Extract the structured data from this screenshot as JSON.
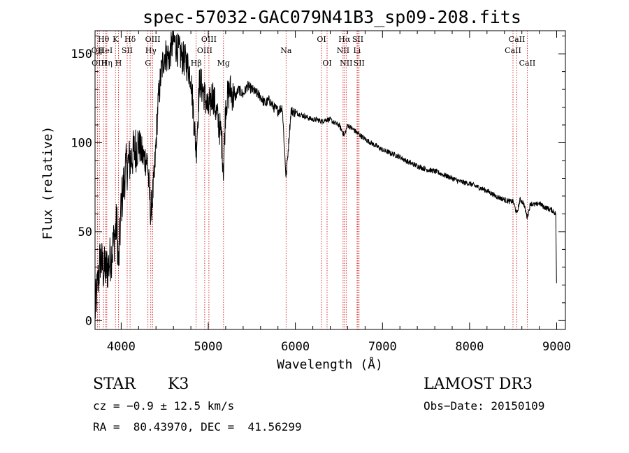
{
  "chart_data": {
    "type": "line",
    "title": "spec-57032-GAC079N41B3_sp09-208.fits",
    "xlabel": "Wavelength (Å)",
    "ylabel": "Flux (relative)",
    "xlim": [
      3700,
      9100
    ],
    "ylim": [
      -5,
      163
    ],
    "xticks": [
      4000,
      5000,
      6000,
      7000,
      8000,
      9000
    ],
    "yticks": [
      0,
      50,
      100,
      150
    ],
    "xtick_labels": [
      "4000",
      "5000",
      "6000",
      "7000",
      "8000",
      "9000"
    ],
    "ytick_labels": [
      "0",
      "50",
      "100",
      "150"
    ],
    "line_color": "#000000",
    "marker_color": "#cc0000",
    "spectrum_anchors": {
      "x": [
        3700,
        3720,
        3760,
        3800,
        3850,
        3900,
        3950,
        3970,
        4000,
        4050,
        4100,
        4150,
        4200,
        4250,
        4300,
        4340,
        4380,
        4420,
        4460,
        4500,
        4550,
        4600,
        4650,
        4700,
        4750,
        4800,
        4861,
        4900,
        4950,
        5000,
        5050,
        5100,
        5150,
        5175,
        5200,
        5250,
        5300,
        5350,
        5400,
        5450,
        5500,
        5550,
        5600,
        5650,
        5700,
        5750,
        5800,
        5850,
        5893,
        5950,
        6000,
        6050,
        6100,
        6150,
        6200,
        6250,
        6300,
        6350,
        6400,
        6450,
        6500,
        6563,
        6600,
        6650,
        6700,
        6750,
        6800,
        6900,
        7000,
        7100,
        7200,
        7300,
        7400,
        7500,
        7600,
        7700,
        7800,
        7900,
        8000,
        8100,
        8200,
        8300,
        8400,
        8450,
        8500,
        8542,
        8580,
        8620,
        8662,
        8700,
        8750,
        8800,
        8850,
        8900,
        8950,
        8990,
        9000
      ],
      "y": [
        5,
        15,
        35,
        28,
        30,
        40,
        55,
        30,
        65,
        85,
        90,
        95,
        100,
        92,
        90,
        60,
        80,
        120,
        140,
        150,
        148,
        158,
        152,
        148,
        145,
        138,
        95,
        135,
        128,
        118,
        128,
        115,
        104,
        85,
        122,
        130,
        125,
        130,
        127,
        132,
        130,
        128,
        126,
        122,
        124,
        120,
        118,
        120,
        80,
        118,
        117,
        116,
        115,
        114,
        113,
        113,
        112,
        113,
        113,
        111,
        110,
        104,
        110,
        108,
        106,
        104,
        102,
        99,
        96,
        94,
        92,
        89,
        87,
        85,
        84,
        82,
        80,
        78,
        77,
        75,
        73,
        70,
        68,
        67,
        67,
        60,
        68,
        66,
        58,
        66,
        65,
        66,
        64,
        63,
        62,
        60,
        10
      ]
    },
    "line_markers": [
      {
        "label": "Hθ",
        "wave": 3797,
        "row": 1
      },
      {
        "label": "OII",
        "wave": 3727,
        "row": 2
      },
      {
        "label": "HeI",
        "wave": 3820,
        "row": 2
      },
      {
        "label": "OIII",
        "wave": 3750,
        "row": 3
      },
      {
        "label": "Hη",
        "wave": 3835,
        "row": 3
      },
      {
        "label": "K",
        "wave": 3934,
        "row": 1
      },
      {
        "label": "SII",
        "wave": 4069,
        "row": 2
      },
      {
        "label": "H",
        "wave": 3969,
        "row": 3
      },
      {
        "label": "Hδ",
        "wave": 4102,
        "row": 1
      },
      {
        "label": "OIII",
        "wave": 4363,
        "row": 1
      },
      {
        "label": "Hγ",
        "wave": 4340,
        "row": 2
      },
      {
        "label": "G",
        "wave": 4307,
        "row": 3
      },
      {
        "label": "Hβ",
        "wave": 4861,
        "row": 3
      },
      {
        "label": "OIII",
        "wave": 5007,
        "row": 1
      },
      {
        "label": "OIII",
        "wave": 4959,
        "row": 2
      },
      {
        "label": "Mg",
        "wave": 5175,
        "row": 3
      },
      {
        "label": "Na",
        "wave": 5893,
        "row": 2
      },
      {
        "label": "OI",
        "wave": 6300,
        "row": 1
      },
      {
        "label": "OI",
        "wave": 6364,
        "row": 3
      },
      {
        "label": "Hα",
        "wave": 6563,
        "row": 1
      },
      {
        "label": "NII",
        "wave": 6548,
        "row": 2
      },
      {
        "label": "NII",
        "wave": 6583,
        "row": 3
      },
      {
        "label": "SII",
        "wave": 6717,
        "row": 1
      },
      {
        "label": "Li",
        "wave": 6708,
        "row": 2
      },
      {
        "label": "SII",
        "wave": 6731,
        "row": 3
      },
      {
        "label": "CaII",
        "wave": 8542,
        "row": 1
      },
      {
        "label": "CaII",
        "wave": 8498,
        "row": 2
      },
      {
        "label": "CaII",
        "wave": 8662,
        "row": 3
      }
    ]
  },
  "info": {
    "object_class": "STAR",
    "subclass": "K3",
    "survey": "LAMOST DR3",
    "redshift": "cz = −0.9 ± 12.5 km/s",
    "obs_date": "Obs−Date: 20150109",
    "coords": "RA =  80.43970, DEC =  41.56299"
  }
}
